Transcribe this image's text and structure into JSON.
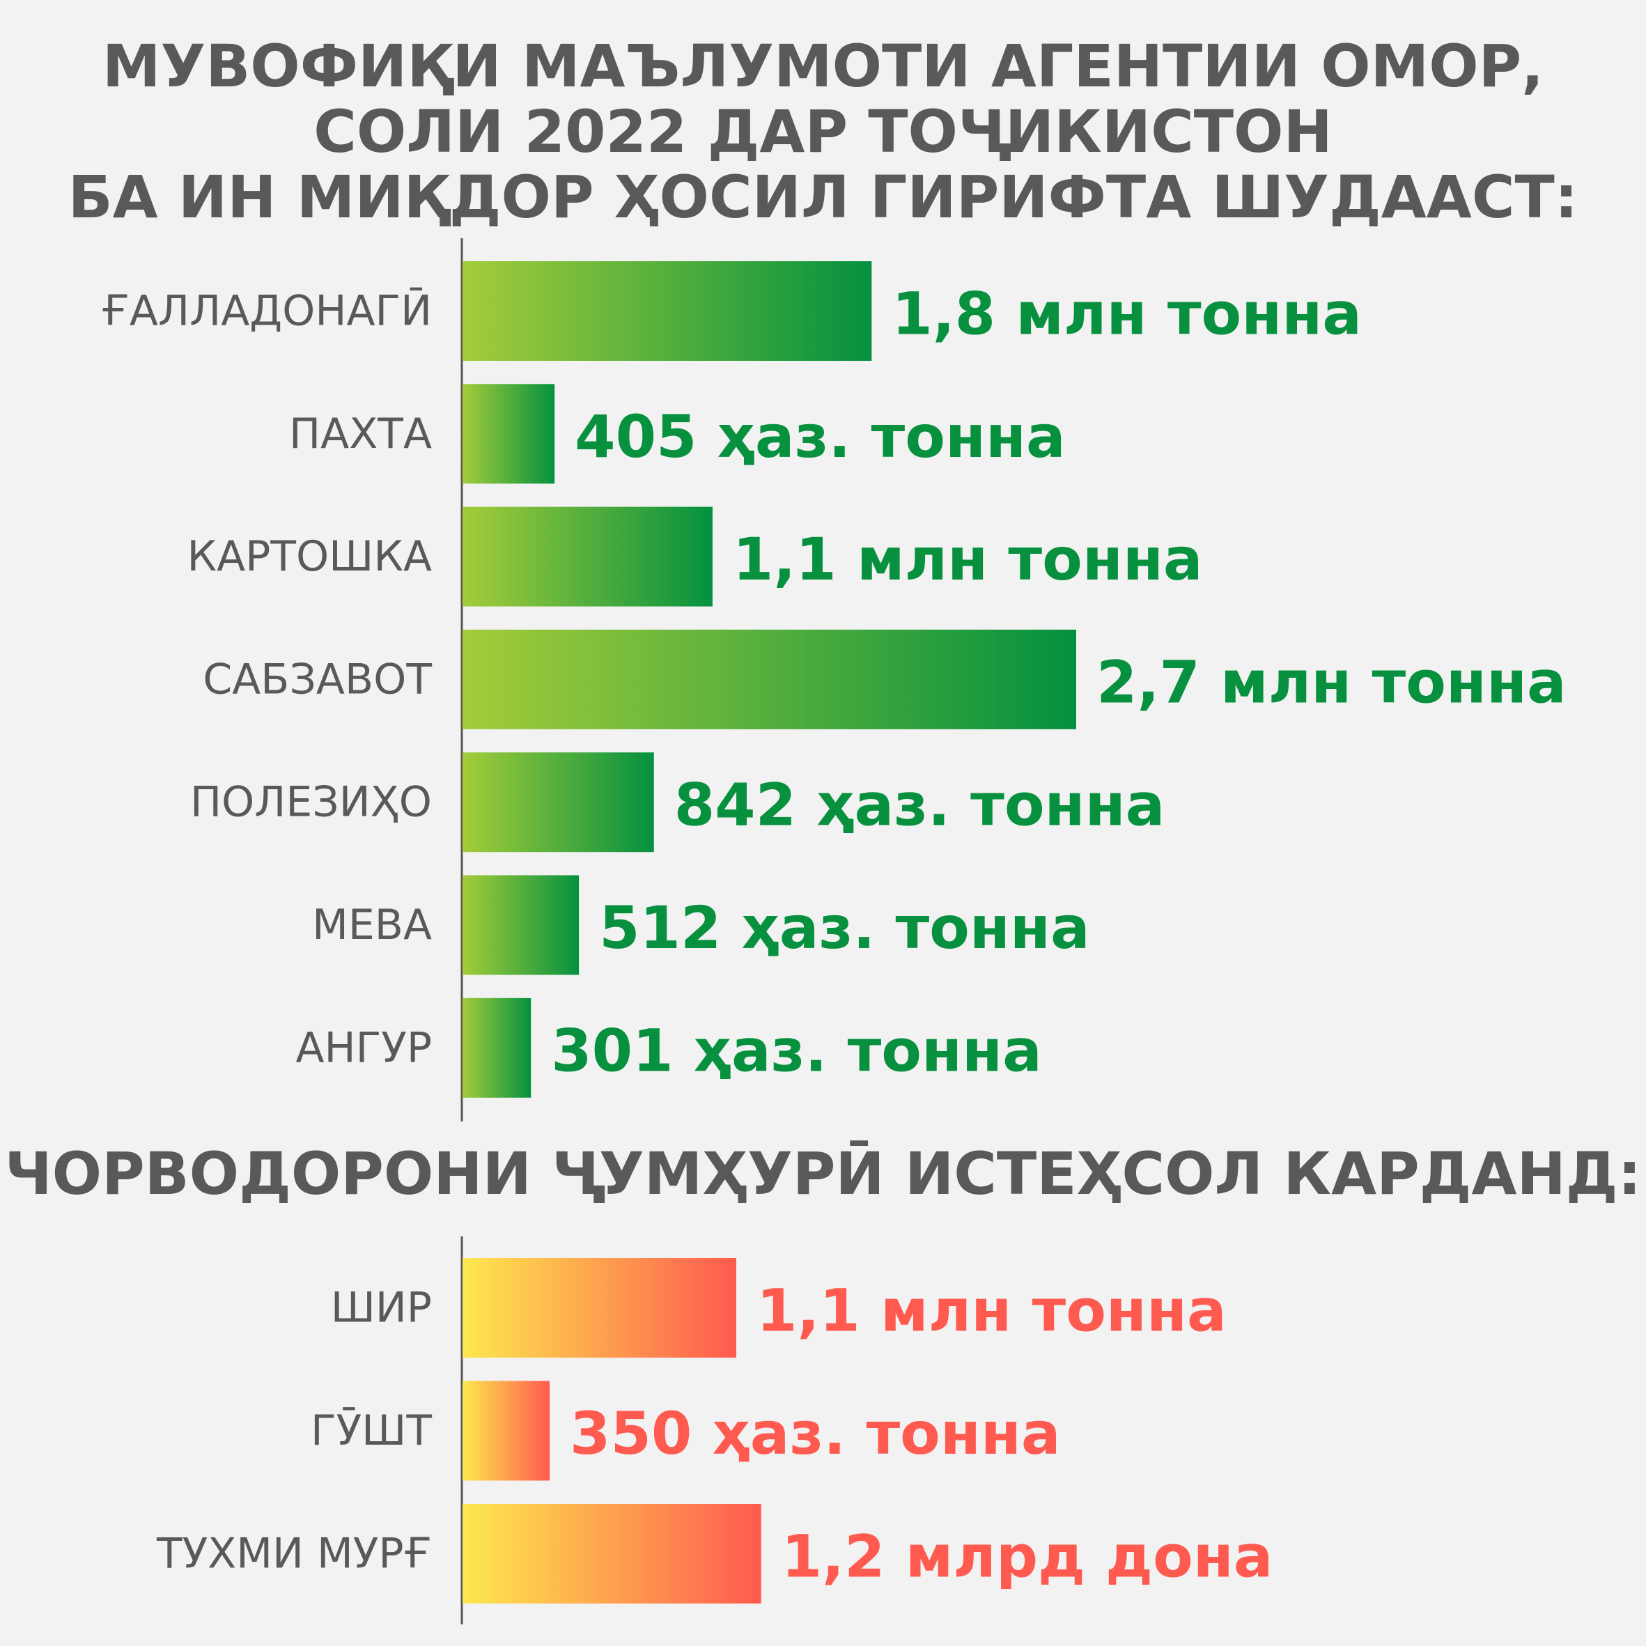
{
  "header": {
    "lines": [
      "МУВОФИҚИ МАЪЛУМОТИ АГЕНТИИ ОМОР,",
      "СОЛИ 2022 ДАР ТОҶИКИСТОН",
      "БА ИН МИҚДОР ҲОСИЛ ГИРИФТА ШУДААСТ:"
    ]
  },
  "section2": {
    "title": "ЧОРВОДОРОНИ ҶУМҲУРӢ ИСТЕҲСОЛ КАРДАНД:"
  },
  "colors": {
    "crop_gradient": [
      "#a4cc3a",
      "#04913f"
    ],
    "crop_text": "#07913f",
    "livestock_gradient": [
      "#fde84e",
      "#ff5a4f"
    ],
    "livestock_text": "#ff5a4f",
    "axis": "#555555"
  },
  "chart_data": [
    {
      "type": "bar",
      "orientation": "horizontal",
      "categories": [
        "ҒАЛЛАДОНАГӢ",
        "ПАХТА",
        "КАРТОШКА",
        "САБЗАВОТ",
        "ПОЛЕЗИҲО",
        "МЕВА",
        "АНГУР"
      ],
      "values": [
        1800,
        405,
        1100,
        2700,
        842,
        512,
        301
      ],
      "unit": "thousand tonnes",
      "value_labels": [
        "1,8 млн тонна",
        "405 ҳаз. тонна",
        "1,1 млн тонна",
        "2,7 млн тонна",
        "842 ҳаз. тонна",
        "512 ҳаз. тонна",
        "301 ҳаз. тонна"
      ],
      "grid": false,
      "legend": "none"
    },
    {
      "type": "bar",
      "orientation": "horizontal",
      "categories": [
        "ШИР",
        "ГӮШТ",
        "ТУХМИ МУРҒ"
      ],
      "values": [
        1100,
        350,
        1200
      ],
      "value_labels": [
        "1,1 млн тонна",
        "350 ҳаз. тонна",
        "1,2 млрд дона"
      ],
      "grid": false,
      "legend": "none"
    }
  ]
}
